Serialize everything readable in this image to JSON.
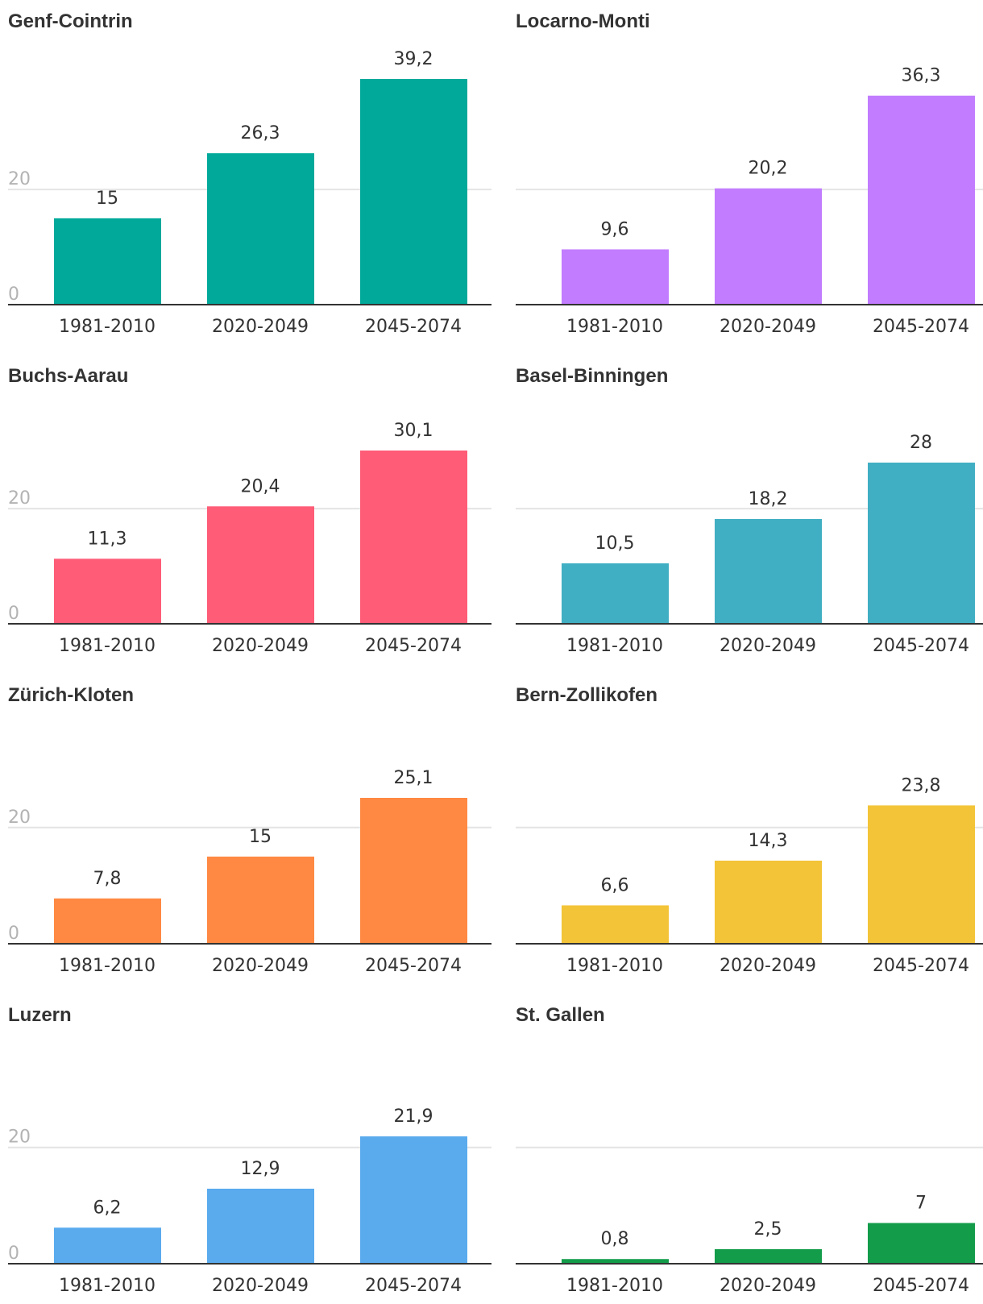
{
  "chart_data": [
    {
      "type": "bar",
      "title": "Genf-Cointrin",
      "categories": [
        "1981-2010",
        "2020-2049",
        "2045-2074"
      ],
      "values": [
        15,
        26.3,
        39.2
      ],
      "labels": [
        "15",
        "26,3",
        "39,2"
      ],
      "color": "#00a99a",
      "ylim": [
        0,
        39.2
      ],
      "yticks": [
        {
          "value": 0,
          "label": "0"
        },
        {
          "value": 20,
          "label": "20"
        }
      ]
    },
    {
      "type": "bar",
      "title": "Locarno-Monti",
      "categories": [
        "1981-2010",
        "2020-2049",
        "2045-2074"
      ],
      "values": [
        9.6,
        20.2,
        36.3
      ],
      "labels": [
        "9,6",
        "20,2",
        "36,3"
      ],
      "color": "#c27cff",
      "ylim": [
        0,
        39.2
      ],
      "yticks": []
    },
    {
      "type": "bar",
      "title": "Buchs-Aarau",
      "categories": [
        "1981-2010",
        "2020-2049",
        "2045-2074"
      ],
      "values": [
        11.3,
        20.4,
        30.1
      ],
      "labels": [
        "11,3",
        "20,4",
        "30,1"
      ],
      "color": "#ff5c77",
      "ylim": [
        0,
        30.1
      ],
      "yticks": [
        {
          "value": 0,
          "label": "0"
        },
        {
          "value": 20,
          "label": "20"
        }
      ]
    },
    {
      "type": "bar",
      "title": "Basel-Binningen",
      "categories": [
        "1981-2010",
        "2020-2049",
        "2045-2074"
      ],
      "values": [
        10.5,
        18.2,
        28
      ],
      "labels": [
        "10,5",
        "18,2",
        "28"
      ],
      "color": "#41afc3",
      "ylim": [
        0,
        30.1
      ],
      "yticks": []
    },
    {
      "type": "bar",
      "title": "Zürich-Kloten",
      "categories": [
        "1981-2010",
        "2020-2049",
        "2045-2074"
      ],
      "values": [
        7.8,
        15,
        25.1
      ],
      "labels": [
        "7,8",
        "15",
        "25,1"
      ],
      "color": "#ff8943",
      "ylim": [
        0,
        25.1
      ],
      "yticks": [
        {
          "value": 0,
          "label": "0"
        },
        {
          "value": 20,
          "label": "20"
        }
      ]
    },
    {
      "type": "bar",
      "title": "Bern-Zollikofen",
      "categories": [
        "1981-2010",
        "2020-2049",
        "2045-2074"
      ],
      "values": [
        6.6,
        14.3,
        23.8
      ],
      "labels": [
        "6,6",
        "14,3",
        "23,8"
      ],
      "color": "#f3c437",
      "ylim": [
        0,
        25.1
      ],
      "yticks": []
    },
    {
      "type": "bar",
      "title": "Luzern",
      "categories": [
        "1981-2010",
        "2020-2049",
        "2045-2074"
      ],
      "values": [
        6.2,
        12.9,
        21.9
      ],
      "labels": [
        "6,2",
        "12,9",
        "21,9"
      ],
      "color": "#5aabee",
      "ylim": [
        0,
        21.9
      ],
      "yticks": [
        {
          "value": 0,
          "label": "0"
        },
        {
          "value": 20,
          "label": "20"
        }
      ]
    },
    {
      "type": "bar",
      "title": "St. Gallen",
      "categories": [
        "1981-2010",
        "2020-2049",
        "2045-2074"
      ],
      "values": [
        0.8,
        2.5,
        7
      ],
      "labels": [
        "0,8",
        "2,5",
        "7"
      ],
      "color": "#139c4a",
      "ylim": [
        0,
        21.9
      ],
      "yticks": []
    }
  ]
}
